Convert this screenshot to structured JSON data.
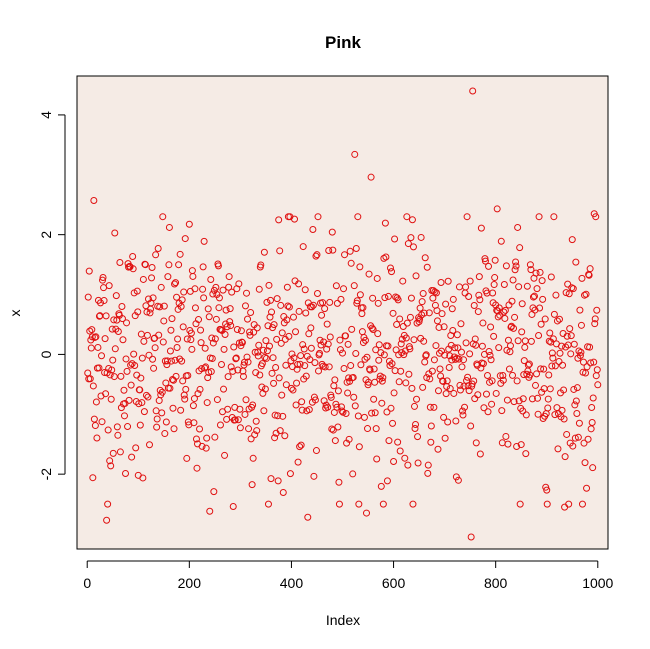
{
  "chart_data": {
    "type": "scatter",
    "title": "Pink",
    "xlabel": "Index",
    "ylabel": "x",
    "xlim": [
      -20,
      1020
    ],
    "ylim": [
      -3.25,
      4.65
    ],
    "x_ticks": [
      0,
      200,
      400,
      600,
      800,
      1000
    ],
    "y_ticks": [
      -2,
      0,
      2,
      4
    ],
    "grid": false,
    "background_color": "#F5EBE5",
    "point_color": "#E01010",
    "marker": "open-circle",
    "n_points": 1000,
    "y_range_observed": [
      -3.05,
      4.4
    ],
    "notable_points": [
      {
        "x": 755,
        "y": 4.4
      },
      {
        "x": 524,
        "y": 3.34
      },
      {
        "x": 556,
        "y": 2.96
      },
      {
        "x": 13,
        "y": 2.57
      },
      {
        "x": 993,
        "y": 2.35
      },
      {
        "x": 803,
        "y": 2.43
      },
      {
        "x": 752,
        "y": -3.05
      },
      {
        "x": 38,
        "y": -2.77
      },
      {
        "x": 432,
        "y": -2.72
      },
      {
        "x": 286,
        "y": -2.54
      },
      {
        "x": 240,
        "y": -2.62
      },
      {
        "x": 547,
        "y": -2.65
      },
      {
        "x": 970,
        "y": -2.5
      },
      {
        "x": 935,
        "y": -2.55
      }
    ]
  }
}
